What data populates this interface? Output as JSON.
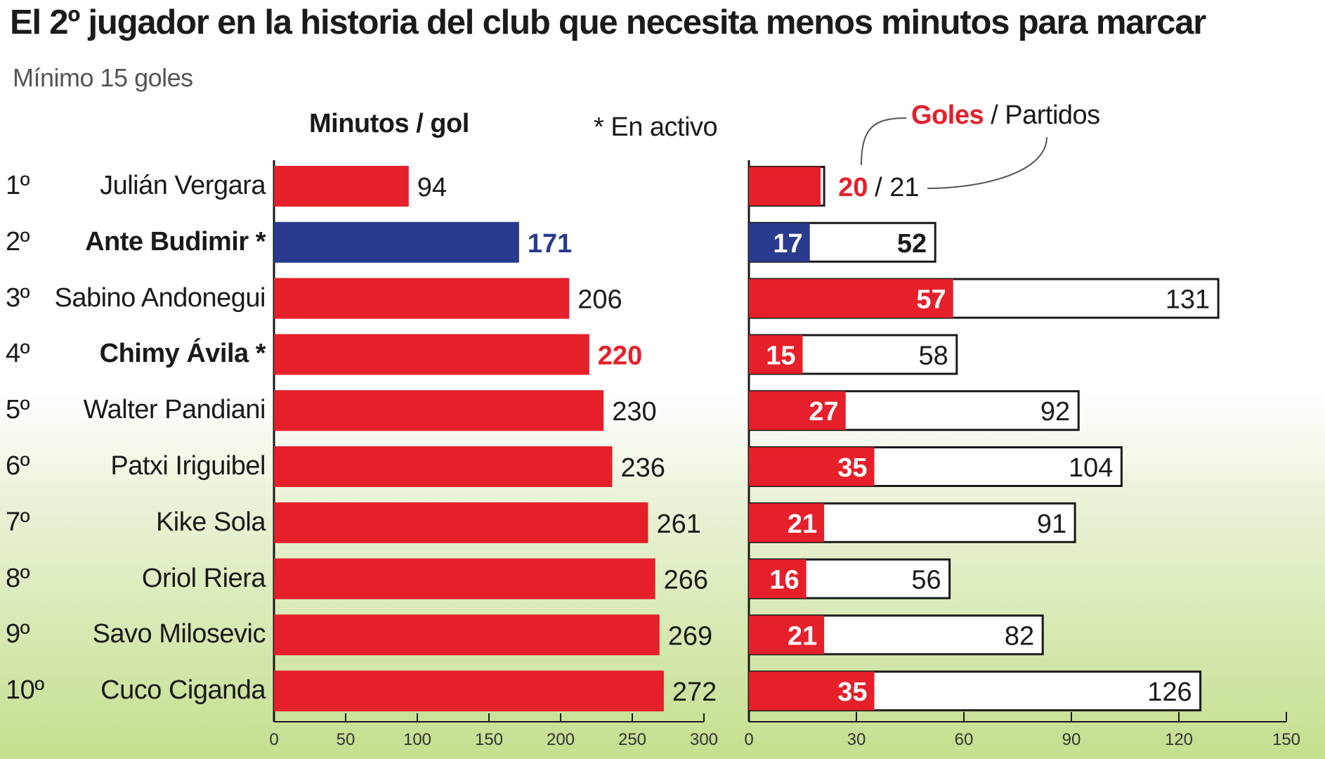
{
  "title": "El 2º jugador en la historia del club que necesita menos minutos para marcar",
  "subtitle": "Mínimo 15 goles",
  "left_header": "Minutos / gol",
  "active_note": "* En activo",
  "right_header": {
    "goles": "Goles",
    "sep_partidos": " / Partidos"
  },
  "colors": {
    "red": "#e5202a",
    "blue": "#293a8f",
    "black": "#1a1a1a",
    "white": "#ffffff"
  },
  "chart_data": [
    {
      "type": "bar",
      "title": "Minutos / gol",
      "categories": [
        "Julián Vergara",
        "Ante Budimir *",
        "Sabino Andonegui",
        "Chimy Ávila *",
        "Walter Pandiani",
        "Patxi Iriguibel",
        "Kike Sola",
        "Oriol Riera",
        "Savo Milosevic",
        "Cuco Ciganda"
      ],
      "ranks": [
        "1º",
        "2º",
        "3º",
        "4º",
        "5º",
        "6º",
        "7º",
        "8º",
        "9º",
        "10º"
      ],
      "values": [
        94,
        171,
        206,
        220,
        230,
        236,
        261,
        266,
        269,
        272
      ],
      "highlight": [
        false,
        true,
        false,
        true,
        false,
        false,
        false,
        false,
        false,
        false
      ],
      "bar_colors": [
        "#e5202a",
        "#293a8f",
        "#e5202a",
        "#e5202a",
        "#e5202a",
        "#e5202a",
        "#e5202a",
        "#e5202a",
        "#e5202a",
        "#e5202a"
      ],
      "label_colors": [
        "#1a1a1a",
        "#293a8f",
        "#1a1a1a",
        "#e5202a",
        "#1a1a1a",
        "#1a1a1a",
        "#1a1a1a",
        "#1a1a1a",
        "#1a1a1a",
        "#1a1a1a"
      ],
      "xlim": [
        0,
        300
      ],
      "xticks": [
        0,
        50,
        100,
        150,
        200,
        250,
        300
      ],
      "orientation": "horizontal"
    },
    {
      "type": "bar",
      "series": [
        {
          "name": "Goles",
          "values": [
            20,
            17,
            57,
            15,
            27,
            35,
            21,
            16,
            21,
            35
          ]
        },
        {
          "name": "Partidos",
          "values": [
            21,
            52,
            131,
            58,
            92,
            104,
            91,
            56,
            82,
            126
          ]
        }
      ],
      "goles_colors": [
        "#e5202a",
        "#293a8f",
        "#e5202a",
        "#e5202a",
        "#e5202a",
        "#e5202a",
        "#e5202a",
        "#e5202a",
        "#e5202a",
        "#e5202a"
      ],
      "xlim": [
        0,
        150
      ],
      "xticks": [
        0,
        30,
        60,
        90,
        120,
        150
      ],
      "orientation": "horizontal"
    }
  ]
}
